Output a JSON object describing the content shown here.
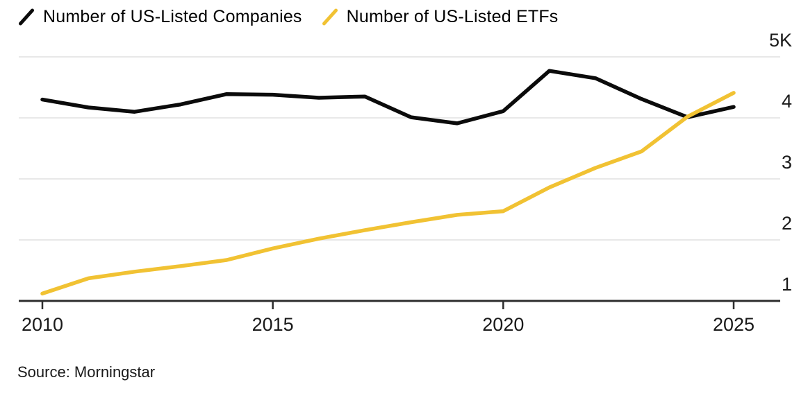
{
  "footer": {
    "source": "Source: Morningstar"
  },
  "style": {
    "background": "#ffffff",
    "grid_color": "#e8e8e8",
    "axis_color": "#2d2d2d",
    "tick_label_color": "#1a1a1a",
    "series_black": "#0b0b0b",
    "series_yellow": "#f1c233"
  },
  "chart_data": {
    "type": "line",
    "title": "",
    "xlabel": "",
    "ylabel": "",
    "unit": "thousands",
    "grid": "horizontal",
    "legend_position": "top-left",
    "x": [
      2010,
      2011,
      2012,
      2013,
      2014,
      2015,
      2016,
      2017,
      2018,
      2019,
      2020,
      2021,
      2022,
      2023,
      2024,
      2025
    ],
    "series": [
      {
        "name": "Number of US-Listed Companies",
        "color": "#0b0b0b",
        "values": [
          4.3,
          4.17,
          4.1,
          4.22,
          4.39,
          4.38,
          4.33,
          4.35,
          4.01,
          3.91,
          4.11,
          4.77,
          4.65,
          4.31,
          4.01,
          4.18
        ]
      },
      {
        "name": "Number of US-Listed ETFs",
        "color": "#f1c233",
        "values": [
          1.12,
          1.37,
          1.48,
          1.57,
          1.67,
          1.86,
          2.02,
          2.16,
          2.29,
          2.41,
          2.47,
          2.86,
          3.18,
          3.45,
          4.02,
          4.41
        ]
      }
    ],
    "x_ticks": [
      2010,
      2015,
      2020,
      2025
    ],
    "y_ticks": [
      {
        "value": 5,
        "label": "5K"
      },
      {
        "value": 4,
        "label": "4"
      },
      {
        "value": 3,
        "label": "3"
      },
      {
        "value": 2,
        "label": "2"
      },
      {
        "value": 1,
        "label": "1"
      }
    ],
    "ylim": [
      1,
      5
    ],
    "xlim": [
      2010,
      2025
    ]
  }
}
